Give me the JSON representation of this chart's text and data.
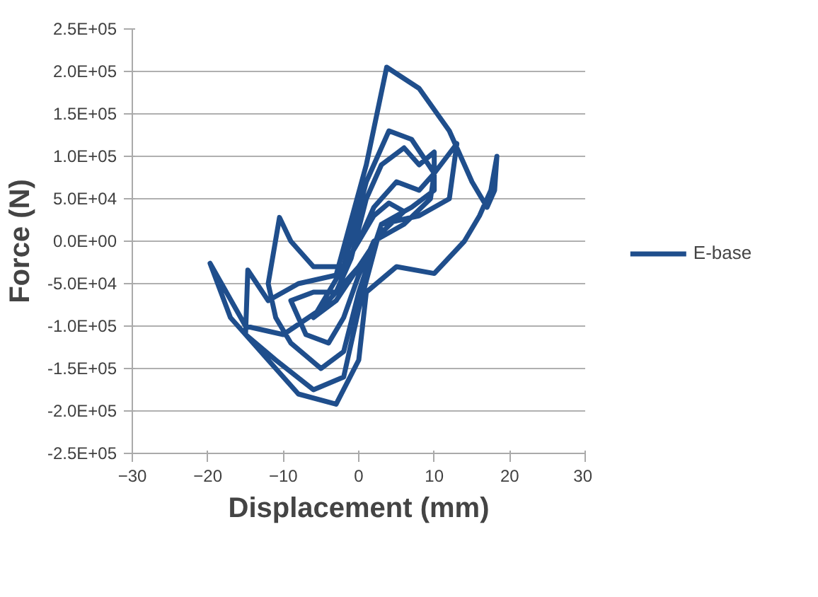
{
  "chart_data": {
    "type": "line",
    "xlabel": "Displacement (mm)",
    "ylabel": "Force (N)",
    "xlim": [
      -30,
      30
    ],
    "xticks": [
      -30,
      -20,
      -10,
      0,
      10,
      20,
      30
    ],
    "ylim": [
      -250000,
      250000
    ],
    "yticks": [
      {
        "value": -250000,
        "label": "-2.5E+05"
      },
      {
        "value": -200000,
        "label": "-2.0E+05"
      },
      {
        "value": -150000,
        "label": "-1.5E+05"
      },
      {
        "value": -100000,
        "label": "-1.0E+05"
      },
      {
        "value": -50000,
        "label": "-5.0E+04"
      },
      {
        "value": 0,
        "label": "0.0E+00"
      },
      {
        "value": 50000,
        "label": "5.0E+04"
      },
      {
        "value": 100000,
        "label": "1.0E+05"
      },
      {
        "value": 150000,
        "label": "1.5E+05"
      },
      {
        "value": 200000,
        "label": "2.0E+05"
      },
      {
        "value": 250000,
        "label": "2.5E+05"
      }
    ],
    "grid": "y",
    "legend": "right",
    "line_style": "solid",
    "marker": "none",
    "series": [
      {
        "name": "E-base",
        "color": "#1f4e8c",
        "x": [
          0,
          2,
          4,
          6,
          3,
          0,
          -3,
          -6,
          -4,
          -2,
          0,
          2,
          5,
          8,
          10,
          9.5,
          6,
          2,
          0,
          -2,
          -4,
          -7,
          -9,
          -6,
          -3,
          -1,
          1,
          3,
          6,
          8,
          10,
          10,
          7,
          3,
          0,
          -2,
          -5,
          -9,
          -11,
          -12,
          -10.5,
          -9,
          -6,
          -2,
          1,
          4,
          7,
          10,
          13,
          12,
          8,
          3,
          0,
          -2,
          -6,
          -11,
          -15,
          -14.7,
          -12,
          -8,
          -3,
          1,
          3.7,
          8,
          12,
          15,
          17,
          18,
          18.3,
          17.5,
          16,
          14,
          10,
          5,
          1,
          0,
          -3,
          -8,
          -13,
          -17,
          -19.7,
          -15,
          -10,
          -5,
          0
        ],
        "values": [
          0,
          30000,
          45000,
          35000,
          10000,
          -30000,
          -70000,
          -90000,
          -60000,
          -30000,
          0,
          40000,
          70000,
          60000,
          80000,
          50000,
          20000,
          0,
          -40000,
          -90000,
          -120000,
          -110000,
          -70000,
          -60000,
          -60000,
          -20000,
          50000,
          90000,
          110000,
          90000,
          105000,
          60000,
          40000,
          20000,
          -60000,
          -130000,
          -150000,
          -120000,
          -90000,
          -50000,
          28000,
          0,
          -30000,
          -30000,
          70000,
          130000,
          120000,
          80000,
          115000,
          50000,
          30000,
          20000,
          -80000,
          -160000,
          -175000,
          -140000,
          -110000,
          -34000,
          -70000,
          -50000,
          -40000,
          90000,
          205000,
          180000,
          130000,
          70000,
          40000,
          60000,
          100000,
          60000,
          30000,
          0,
          -38000,
          -30000,
          -60000,
          -140000,
          -192000,
          -180000,
          -130000,
          -90000,
          -26000,
          -100000,
          -110000,
          -80000,
          -30000
        ]
      }
    ]
  }
}
